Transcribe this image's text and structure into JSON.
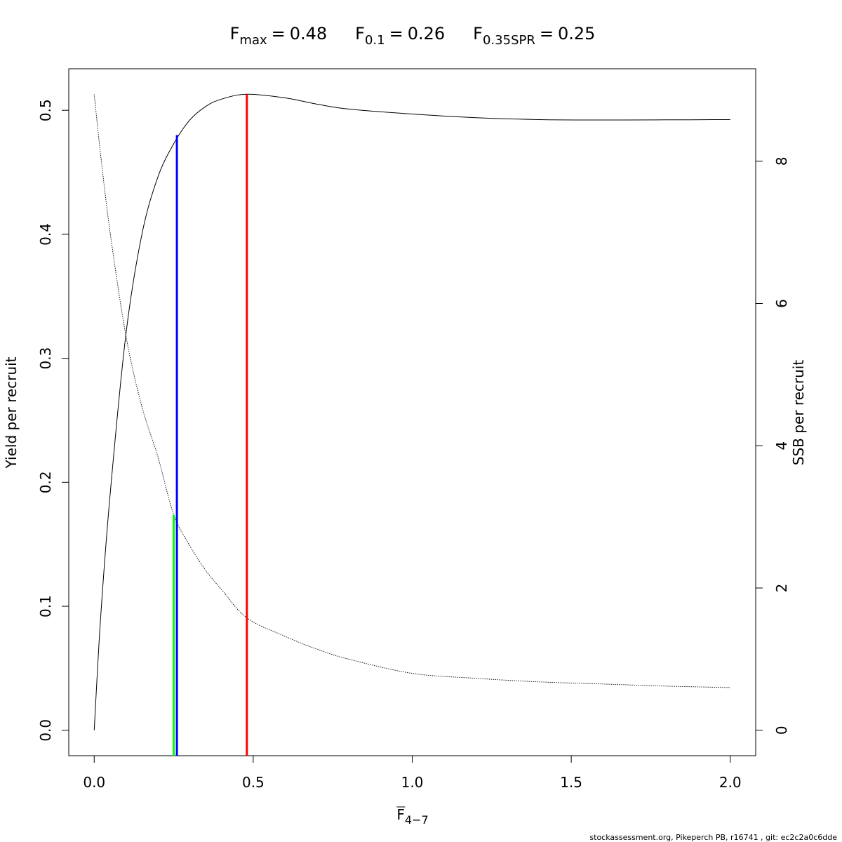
{
  "chart_data": {
    "type": "line",
    "references": [
      {
        "symbol": "F",
        "subscript": "max",
        "sign": "=",
        "x": 0.48,
        "top": 0.513,
        "axis": "y",
        "color": "#ff0000"
      },
      {
        "symbol": "F",
        "subscript": "0.1",
        "sign": "=",
        "x": 0.26,
        "top": 0.48,
        "axis": "y",
        "color": "#0000ff"
      },
      {
        "symbol": "F",
        "subscript": "0.35SPR",
        "sign": "=",
        "x": 0.25,
        "top": 3.03,
        "axis": "y2",
        "color": "#00ff00"
      }
    ],
    "xlabel": {
      "symbol": "F",
      "subscript": "4−7"
    },
    "ylabel": "Yield per recruit",
    "y2label": "SSB per recruit",
    "footer": "stockassessment.org, Pikeperch PB, r16741 , git: ec2c2a0c6dde",
    "x": [
      0,
      0.02,
      0.05,
      0.1,
      0.15,
      0.2,
      0.25,
      0.3,
      0.35,
      0.4,
      0.48,
      0.6,
      0.7,
      0.8,
      1.0,
      1.2,
      1.4,
      1.6,
      1.8,
      2.0
    ],
    "series": [
      {
        "color": "#000000",
        "dash": "solid",
        "values": [
          0,
          0.09,
          0.19,
          0.32,
          0.4,
          0.446,
          0.473,
          0.492,
          0.503,
          0.509,
          0.513,
          0.51,
          0.505,
          0.501,
          0.497,
          0.494,
          0.4925,
          0.4922,
          0.4923,
          0.4925
        ]
      },
      {
        "color": "#000000",
        "dash": "dotted",
        "axis": "y2",
        "values": [
          8.94,
          8.1,
          7.0,
          5.54,
          4.55,
          3.85,
          3.03,
          2.6,
          2.25,
          1.98,
          1.58,
          1.32,
          1.14,
          1.0,
          0.8,
          0.73,
          0.68,
          0.65,
          0.62,
          0.6
        ]
      }
    ],
    "xlim": [
      -0.08,
      2.08
    ],
    "ylim": [
      -0.0205,
      0.5335
    ],
    "y2lim": [
      -0.358,
      9.3
    ],
    "xticks": [
      {
        "value": 0,
        "label": "0.0"
      },
      0.5,
      {
        "value": 1,
        "label": "1.0"
      },
      1.5,
      {
        "value": 2,
        "label": "2.0"
      }
    ],
    "yticks": [
      {
        "value": 0,
        "label": "0.0"
      },
      0.1,
      0.2,
      0.3,
      0.4,
      0.5
    ],
    "y2ticks": [
      0,
      2,
      4,
      6,
      8
    ]
  }
}
